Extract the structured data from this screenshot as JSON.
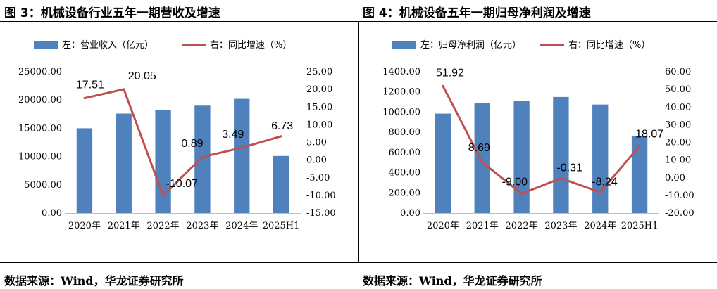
{
  "figures": [
    {
      "title": "图 3：机械设备行业五年一期营收及增速",
      "source": "数据来源：Wind，华龙证券研究所"
    },
    {
      "title": "图 4：机械设备五年一期归母净利润及增速",
      "source": "数据来源：Wind，华龙证券研究所"
    }
  ],
  "colors": {
    "bar": "#4F81BD",
    "line": "#C0504D"
  },
  "chart_data": [
    {
      "type": "bar",
      "categories": [
        "2020年",
        "2021年",
        "2022年",
        "2023年",
        "2024年",
        "2025H1"
      ],
      "series": [
        {
          "name": "左：营业收入（亿元）",
          "type": "bar",
          "axis": "left",
          "values": [
            15000,
            17600,
            18200,
            19000,
            20200,
            10100
          ]
        },
        {
          "name": "右：同比增速（%）",
          "type": "line",
          "axis": "right",
          "values": [
            17.51,
            20.05,
            -10.07,
            0.89,
            3.49,
            6.73
          ],
          "labels": [
            "17.51",
            "20.05",
            "-10.07",
            "0.89",
            "3.49",
            "6.73"
          ]
        }
      ],
      "y_left": {
        "min": 0,
        "max": 25000,
        "step": 5000,
        "ticks": [
          "0.00",
          "5000.00",
          "10000.00",
          "15000.00",
          "20000.00",
          "25000.00"
        ]
      },
      "y_right": {
        "min": -15,
        "max": 25,
        "step": 5,
        "ticks": [
          "-15.00",
          "-10.00",
          "-5.00",
          "0.00",
          "5.00",
          "10.00",
          "15.00",
          "20.00",
          "25.00"
        ]
      },
      "legend_position": "top",
      "grid": false
    },
    {
      "type": "bar",
      "categories": [
        "2020年",
        "2021年",
        "2022年",
        "2023年",
        "2024年",
        "2025H1"
      ],
      "series": [
        {
          "name": "左：归母净利润（亿元）",
          "type": "bar",
          "axis": "left",
          "values": [
            985,
            1090,
            1110,
            1150,
            1075,
            760
          ]
        },
        {
          "name": "右：同比增速（%）",
          "type": "line",
          "axis": "right",
          "values": [
            51.92,
            8.69,
            -9.0,
            -0.31,
            -8.24,
            18.07
          ],
          "labels": [
            "51.92",
            "8.69",
            "-9.00",
            "-0.31",
            "-8.24",
            "18.07"
          ]
        }
      ],
      "y_left": {
        "min": 0,
        "max": 1400,
        "step": 200,
        "ticks": [
          "0.00",
          "200.00",
          "400.00",
          "600.00",
          "800.00",
          "1000.00",
          "1200.00",
          "1400.00"
        ]
      },
      "y_right": {
        "min": -20,
        "max": 60,
        "step": 10,
        "ticks": [
          "-20.00",
          "-10.00",
          "0.00",
          "10.00",
          "20.00",
          "30.00",
          "40.00",
          "50.00",
          "60.00"
        ]
      },
      "legend_position": "top",
      "grid": false
    }
  ]
}
